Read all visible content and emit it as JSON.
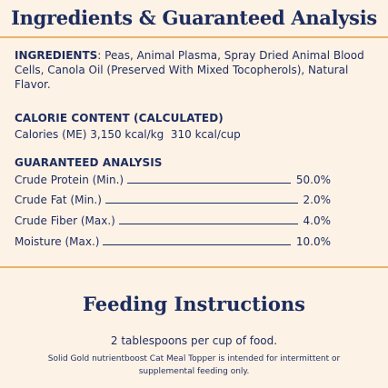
{
  "header": {
    "title": "Ingredients & Guaranteed Analysis"
  },
  "ingredients": {
    "label": "INGREDIENTS",
    "text": ": Peas, Animal Plasma, Spray Dried Animal Blood Cells, Canola Oil (Preserved With Mixed Tocopherols), Natural Flavor."
  },
  "calorie": {
    "heading": "CALORIE CONTENT (CALCULATED)",
    "text": "Calories (ME) 3,150 kcal/kg  310 kcal/cup"
  },
  "analysis": {
    "heading": "GUARANTEED ANALYSIS",
    "rows": [
      {
        "label": "Crude Protein (Min.)",
        "value": "50.0%"
      },
      {
        "label": "Crude Fat (Min.)",
        "value": "2.0%"
      },
      {
        "label": "Crude Fiber (Max.)",
        "value": "4.0%"
      },
      {
        "label": "Moisture (Max.)",
        "value": "10.0%"
      }
    ]
  },
  "feeding": {
    "title": "Feeding Instructions",
    "main": "2 tablespoons per cup of food.",
    "note": "Solid Gold nutrientboost Cat Meal Topper is intended for intermittent or supplemental feeding only."
  },
  "colors": {
    "background": "#fdf2e6",
    "text": "#1c2c5e",
    "accent_rule": "#e8b36a"
  }
}
